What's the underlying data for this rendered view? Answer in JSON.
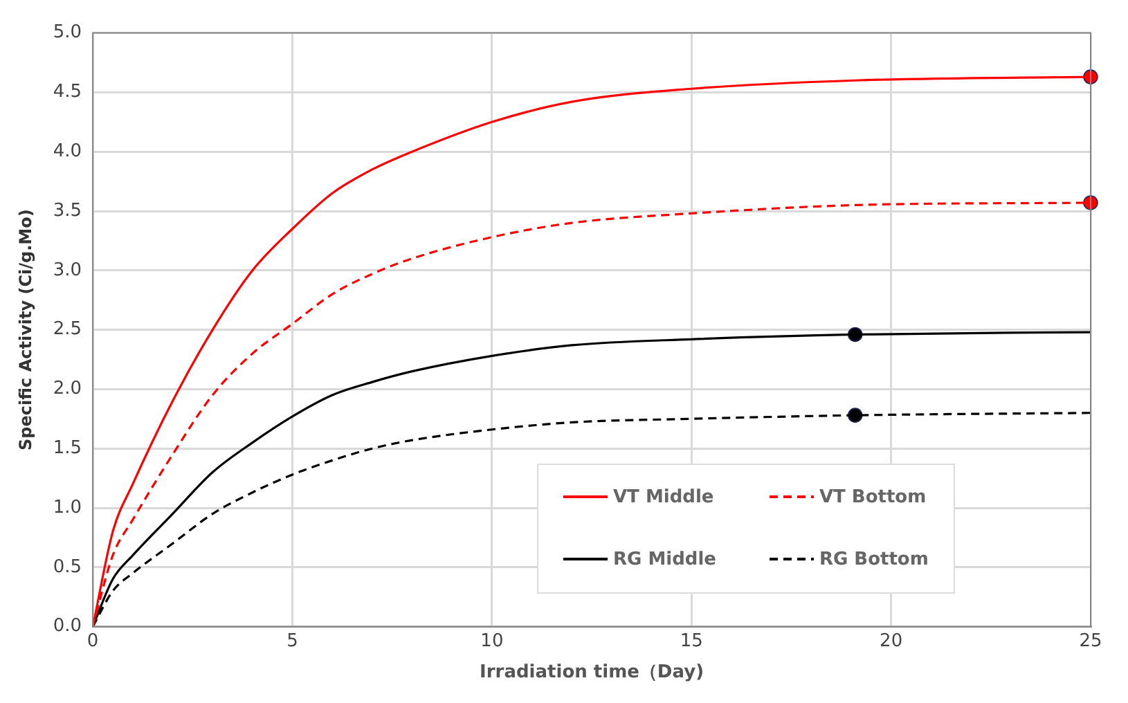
{
  "chart_data": {
    "type": "line",
    "xlabel": "Irradiation time（Day)",
    "ylabel": "Specific Activity (Ci/g.Mo)",
    "x": [
      0,
      0.5,
      1,
      2,
      3,
      4,
      5,
      6,
      7,
      8,
      10,
      12,
      15,
      19.1,
      25
    ],
    "series": [
      {
        "name": "VT Middle",
        "color": "#ff0000",
        "line_style": "solid",
        "values": [
          0,
          0.8,
          1.2,
          1.9,
          2.5,
          3.0,
          3.35,
          3.65,
          3.85,
          4.0,
          4.25,
          4.42,
          4.53,
          4.6,
          4.63
        ]
      },
      {
        "name": "VT Bottom",
        "color": "#ff0000",
        "line_style": "dashed",
        "values": [
          0,
          0.6,
          0.9,
          1.45,
          1.95,
          2.3,
          2.55,
          2.8,
          2.97,
          3.1,
          3.28,
          3.4,
          3.48,
          3.55,
          3.57
        ]
      },
      {
        "name": "RG Middle",
        "color": "#000000",
        "line_style": "solid",
        "values": [
          0,
          0.4,
          0.6,
          0.95,
          1.3,
          1.55,
          1.77,
          1.95,
          2.06,
          2.15,
          2.28,
          2.37,
          2.42,
          2.46,
          2.48
        ]
      },
      {
        "name": "RG Bottom",
        "color": "#000000",
        "line_style": "dashed",
        "values": [
          0,
          0.3,
          0.45,
          0.7,
          0.95,
          1.13,
          1.28,
          1.4,
          1.5,
          1.57,
          1.66,
          1.72,
          1.75,
          1.78,
          1.8
        ]
      },
      {
        "type": "scatter",
        "color": "#ff0000",
        "marker": "circle",
        "values": [
          null,
          null,
          null,
          null,
          null,
          null,
          null,
          null,
          null,
          null,
          null,
          null,
          null,
          null,
          4.63
        ]
      },
      {
        "type": "scatter",
        "color": "#ff0000",
        "marker": "circle",
        "values": [
          null,
          null,
          null,
          null,
          null,
          null,
          null,
          null,
          null,
          null,
          null,
          null,
          null,
          null,
          3.57
        ]
      },
      {
        "type": "scatter",
        "color": "#000000",
        "marker": "circle",
        "values": [
          null,
          null,
          null,
          null,
          null,
          null,
          null,
          null,
          null,
          null,
          null,
          null,
          null,
          2.46,
          null
        ]
      },
      {
        "type": "scatter",
        "color": "#000000",
        "marker": "circle",
        "values": [
          null,
          null,
          null,
          null,
          null,
          null,
          null,
          null,
          null,
          null,
          null,
          null,
          null,
          1.78,
          null
        ]
      }
    ],
    "xlim": [
      0,
      25
    ],
    "xticks": [
      0,
      5,
      10,
      15,
      20,
      25
    ],
    "ylim": [
      0,
      5
    ],
    "yticks": [
      {
        "value": 0,
        "label": "0.0"
      },
      0.5,
      {
        "value": 1,
        "label": "1.0"
      },
      1.5,
      {
        "value": 2,
        "label": "2.0"
      },
      2.5,
      {
        "value": 3,
        "label": "3.0"
      },
      3.5,
      {
        "value": 4,
        "label": "4.0"
      },
      4.5,
      {
        "value": 5,
        "label": "5.0"
      }
    ],
    "grid": true,
    "legend": "bottom right",
    "marker": "none"
  }
}
